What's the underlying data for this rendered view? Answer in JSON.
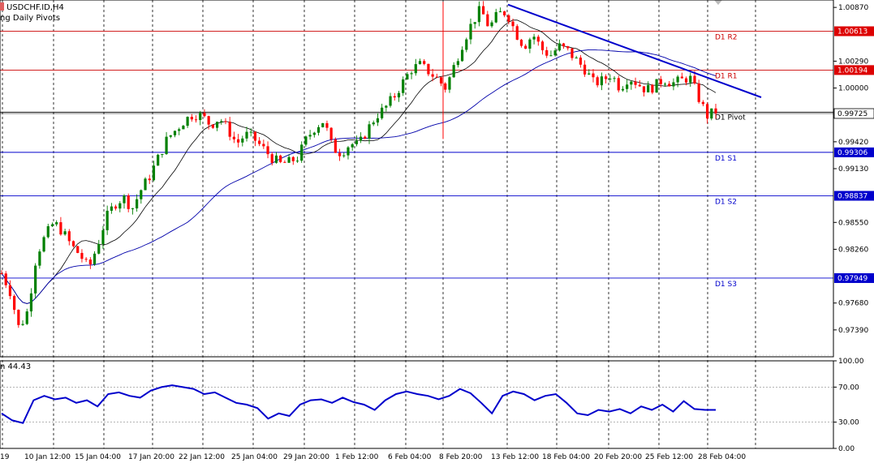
{
  "header": {
    "symbol_title": "USDCHF.ID,H4",
    "indicator_title": "ng Daily Pivots"
  },
  "rsi_panel": {
    "label": "n 44.43",
    "ticks": [
      "100.00",
      "70.00",
      "30.00",
      "0.00"
    ]
  },
  "price_axis": {
    "ticks": [
      "1.00870",
      "1.00290",
      "1.00000",
      "0.99420",
      "0.99130",
      "0.98550",
      "0.98260",
      "0.97680",
      "0.97390"
    ],
    "current_price_tag": "0.99725"
  },
  "time_axis": {
    "labels": [
      "19",
      "10 Jan 12:00",
      "15 Jan 04:00",
      "17 Jan 20:00",
      "22 Jan 12:00",
      "25 Jan 04:00",
      "29 Jan 20:00",
      "1 Feb 12:00",
      "6 Feb 04:00",
      "8 Feb 20:00",
      "13 Feb 12:00",
      "18 Feb 04:00",
      "20 Feb 20:00",
      "25 Feb 12:00",
      "28 Feb 04:00"
    ]
  },
  "pivots": [
    {
      "label": "D1 R2",
      "tag": "1.00613",
      "color": "#cc0000"
    },
    {
      "label": "D1 R1",
      "tag": "1.00194",
      "color": "#cc0000"
    },
    {
      "label": "D1 Pivot",
      "tag": "",
      "color": "#000000"
    },
    {
      "label": "D1 S1",
      "tag": "0.99306",
      "color": "#0000cc"
    },
    {
      "label": "D1 S2",
      "tag": "0.98837",
      "color": "#0000cc"
    },
    {
      "label": "D1 S3",
      "tag": "0.97949",
      "color": "#0000cc"
    }
  ],
  "chart_data": {
    "type": "candlestick",
    "symbol": "USDCHF",
    "timeframe": "H4",
    "ylim": [
      0.971,
      1.0095
    ],
    "pivot_levels": {
      "R2": 1.00613,
      "R1": 1.00194,
      "Pivot": 0.9974,
      "S1": 0.99306,
      "S2": 0.98837,
      "S3": 0.97949
    },
    "current_price": 0.99725,
    "close_series": [
      0.98,
      0.978,
      0.974,
      0.976,
      0.982,
      0.984,
      0.9855,
      0.9845,
      0.983,
      0.982,
      0.9805,
      0.983,
      0.986,
      0.9875,
      0.9882,
      0.987,
      0.989,
      0.9905,
      0.9925,
      0.9945,
      0.9955,
      0.9965,
      0.9972,
      0.997,
      0.996,
      0.9968,
      0.9955,
      0.994,
      0.995,
      0.9945,
      0.9935,
      0.9925,
      0.9918,
      0.992,
      0.9925,
      0.9945,
      0.9958,
      0.9965,
      0.9935,
      0.993,
      0.994,
      0.9938,
      0.9955,
      0.997,
      0.9978,
      0.999,
      1.0005,
      1.002,
      1.0025,
      1.0018,
      1.001,
      1.0,
      1.0025,
      1.005,
      1.007,
      1.0085,
      1.0065,
      1.008,
      1.0082,
      1.006,
      1.0045,
      1.0058,
      1.0042,
      1.0035,
      1.0045,
      1.004,
      1.003,
      1.002,
      1.0005,
      1.0008,
      1.0015,
      1.0,
      1.0012,
      1.0005,
      0.9998,
      1.0002,
      1.001,
      1.0005,
      1.0008,
      1.0012,
      0.999,
      0.997,
      0.9975
    ],
    "rsi": {
      "ylim": [
        0,
        100
      ],
      "levels": [
        70,
        30
      ],
      "last_value": 44.43,
      "values": [
        40,
        32,
        29,
        55,
        60,
        56,
        58,
        52,
        55,
        48,
        62,
        64,
        60,
        58,
        66,
        70,
        72,
        70,
        68,
        62,
        64,
        58,
        52,
        50,
        46,
        34,
        40,
        37,
        50,
        55,
        56,
        52,
        58,
        53,
        50,
        44,
        55,
        62,
        65,
        62,
        60,
        56,
        60,
        68,
        63,
        52,
        40,
        60,
        65,
        62,
        55,
        60,
        62,
        52,
        40,
        38,
        44,
        42,
        45,
        40,
        48,
        44,
        50,
        42,
        54,
        45,
        44,
        44
      ]
    },
    "trendline": {
      "from": 1.009,
      "to": 0.999
    },
    "time_labels": [
      "19",
      "10 Jan 12:00",
      "15 Jan 04:00",
      "17 Jan 20:00",
      "22 Jan 12:00",
      "25 Jan 04:00",
      "29 Jan 20:00",
      "1 Feb 12:00",
      "6 Feb 04:00",
      "8 Feb 20:00",
      "13 Feb 12:00",
      "18 Feb 04:00",
      "20 Feb 20:00",
      "25 Feb 12:00",
      "28 Feb 04:00"
    ]
  }
}
